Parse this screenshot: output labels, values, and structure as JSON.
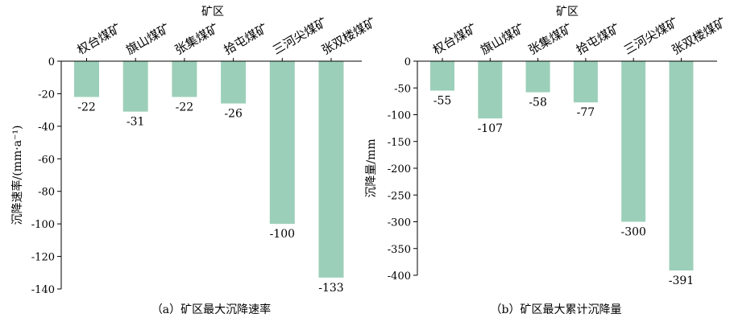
{
  "chart_data": [
    {
      "type": "bar",
      "caption": "（a）矿区最大沉降速率",
      "xlabel": "矿区",
      "ylabel": "沉降速率/(mm·a⁻¹)",
      "categories": [
        "权台煤矿",
        "旗山煤矿",
        "张集煤矿",
        "拾屯煤矿",
        "三河尖煤矿",
        "张双楼煤矿"
      ],
      "values": [
        -22,
        -31,
        -22,
        -26,
        -100,
        -133
      ],
      "ylim": [
        -140,
        0
      ],
      "yticks": [
        0,
        -20,
        -40,
        -60,
        -80,
        -100,
        -120,
        -140
      ],
      "bar_color": "#9ccfb9",
      "grid": false
    },
    {
      "type": "bar",
      "caption": "（b）矿区最大累计沉降量",
      "xlabel": "矿区",
      "ylabel": "沉降量/mm",
      "categories": [
        "权台煤矿",
        "旗山煤矿",
        "张集煤矿",
        "拾屯煤矿",
        "三河尖煤矿",
        "张双楼煤矿"
      ],
      "values": [
        -55,
        -107,
        -58,
        -77,
        -300,
        -391
      ],
      "ylim": [
        -400,
        0
      ],
      "yticks": [
        0,
        -50,
        -100,
        -150,
        -200,
        -250,
        -300,
        -350,
        -400
      ],
      "bar_color": "#9ccfb9",
      "grid": false
    }
  ]
}
